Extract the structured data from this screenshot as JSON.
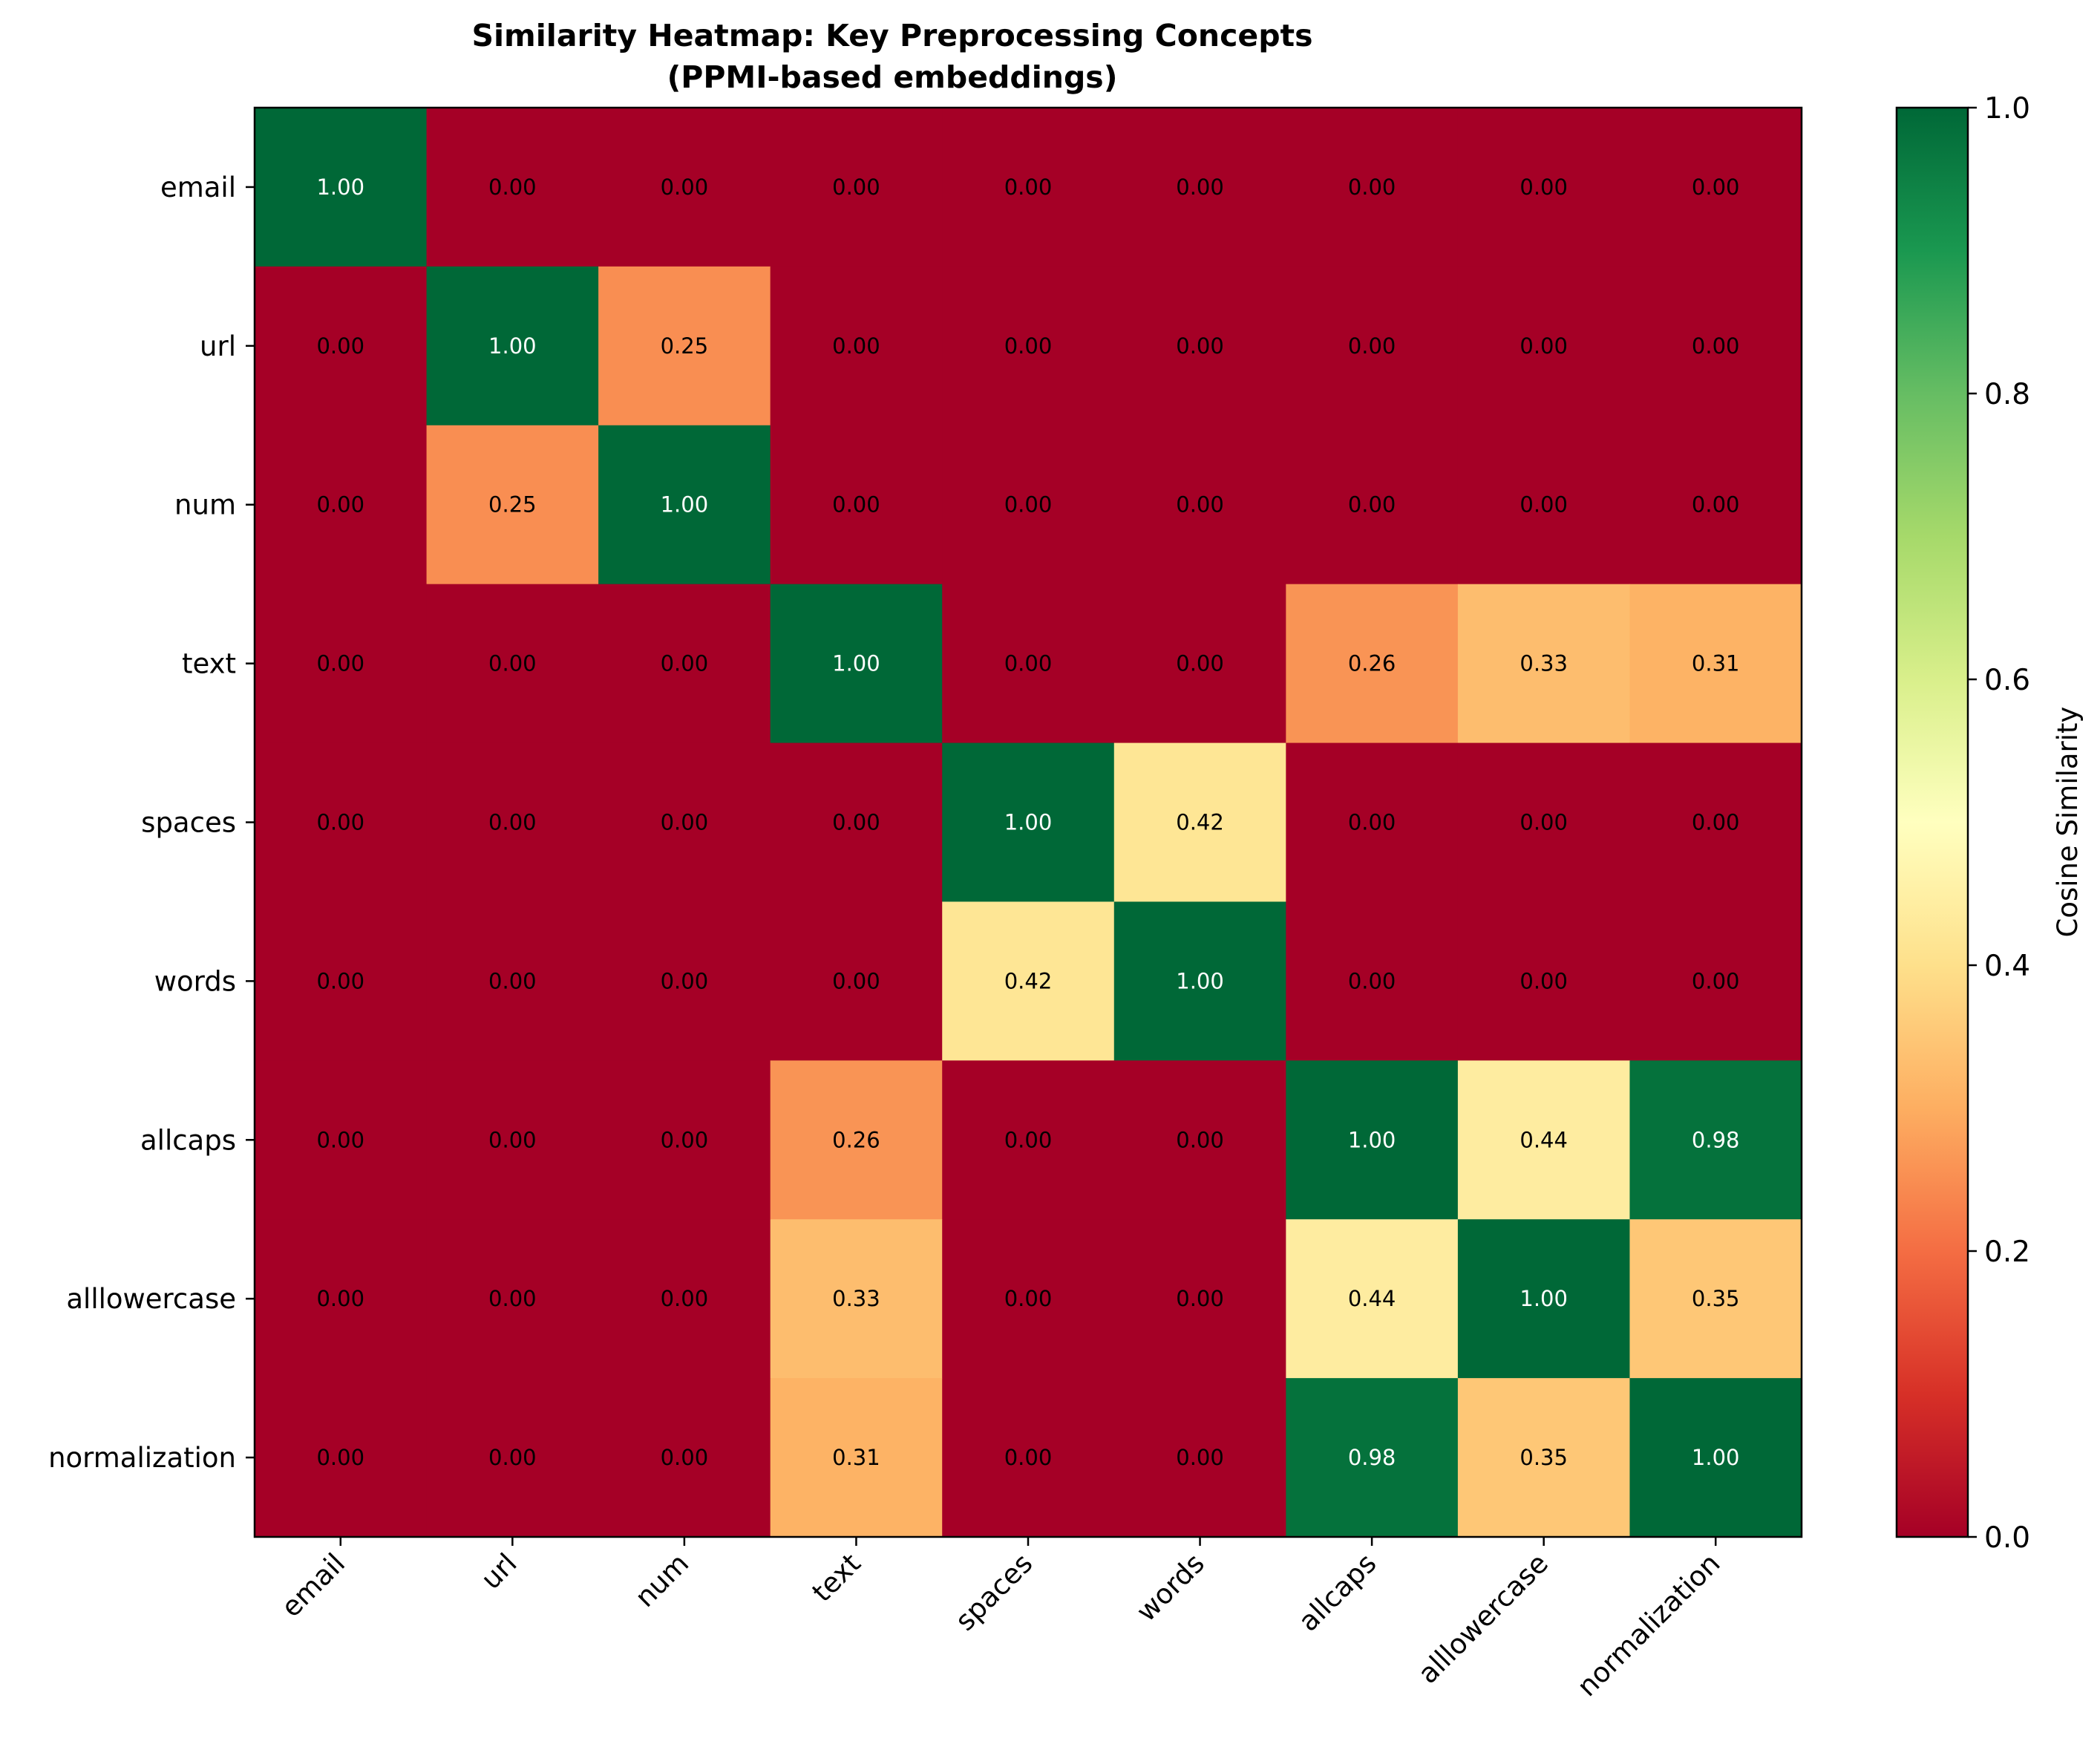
{
  "chart_data": {
    "type": "heatmap",
    "title": "Similarity Heatmap: Key Preprocessing Concepts",
    "subtitle": "(PPMI-based embeddings)",
    "row_labels": [
      "email",
      "url",
      "num",
      "text",
      "spaces",
      "words",
      "allcaps",
      "alllowercase",
      "normalization"
    ],
    "col_labels": [
      "email",
      "url",
      "num",
      "text",
      "spaces",
      "words",
      "allcaps",
      "alllowercase",
      "normalization"
    ],
    "values": [
      [
        1.0,
        0.0,
        0.0,
        0.0,
        0.0,
        0.0,
        0.0,
        0.0,
        0.0
      ],
      [
        0.0,
        1.0,
        0.25,
        0.0,
        0.0,
        0.0,
        0.0,
        0.0,
        0.0
      ],
      [
        0.0,
        0.25,
        1.0,
        0.0,
        0.0,
        0.0,
        0.0,
        0.0,
        0.0
      ],
      [
        0.0,
        0.0,
        0.0,
        1.0,
        0.0,
        0.0,
        0.26,
        0.33,
        0.31
      ],
      [
        0.0,
        0.0,
        0.0,
        0.0,
        1.0,
        0.42,
        0.0,
        0.0,
        0.0
      ],
      [
        0.0,
        0.0,
        0.0,
        0.0,
        0.42,
        1.0,
        0.0,
        0.0,
        0.0
      ],
      [
        0.0,
        0.0,
        0.0,
        0.26,
        0.0,
        0.0,
        1.0,
        0.44,
        0.98
      ],
      [
        0.0,
        0.0,
        0.0,
        0.33,
        0.0,
        0.0,
        0.44,
        1.0,
        0.35
      ],
      [
        0.0,
        0.0,
        0.0,
        0.31,
        0.0,
        0.0,
        0.98,
        0.35,
        1.0
      ]
    ],
    "value_format": "2 decimals",
    "colormap": "RdYlGn",
    "vmin": 0.0,
    "vmax": 1.0,
    "colorbar": {
      "label": "Cosine Similarity",
      "ticks": [
        0.0,
        0.2,
        0.4,
        0.6,
        0.8,
        1.0
      ],
      "tick_labels": [
        "0.0",
        "0.2",
        "0.4",
        "0.6",
        "0.8",
        "1.0"
      ]
    }
  }
}
